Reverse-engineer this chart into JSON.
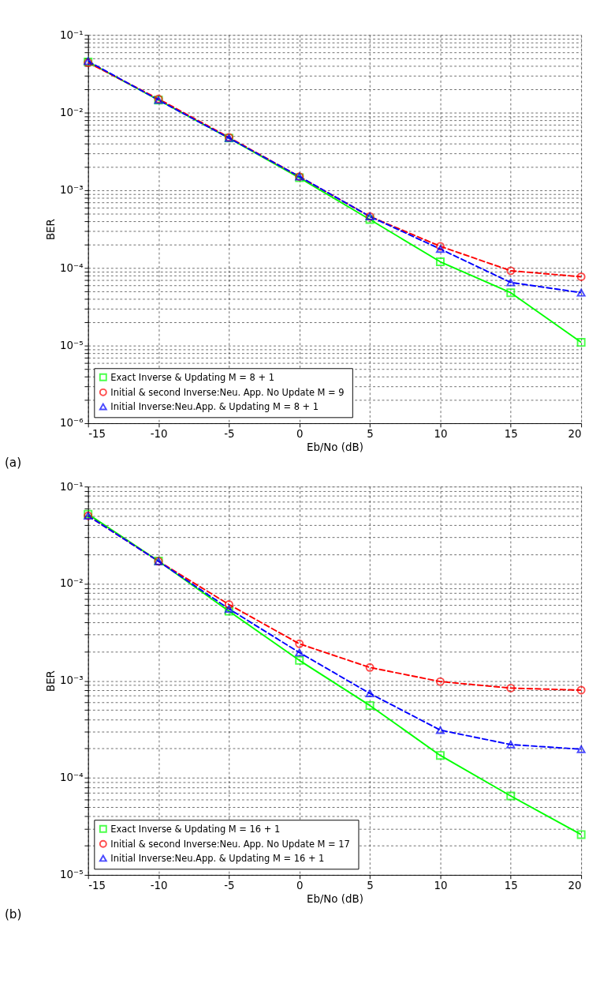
{
  "chart_data": [
    {
      "type": "line",
      "xlabel": "Eb/No (dB)",
      "ylabel": "BER",
      "annotations": [
        "(a)"
      ],
      "log": "y",
      "grid": true,
      "legend": "bottom left",
      "x": [
        -15,
        -10,
        -5,
        0,
        5,
        10,
        15,
        20
      ],
      "xlim": [
        -15,
        20
      ],
      "xticks": [
        -15,
        -10,
        -5,
        0,
        5,
        10,
        15,
        20
      ],
      "ylim": [
        1e-06,
        0.1
      ],
      "yticks": [
        {
          "value": 1e-06,
          "label": "10⁻⁶"
        },
        {
          "value": 2e-06,
          "label": null
        },
        {
          "value": 3e-06,
          "label": null
        },
        {
          "value": 4e-06,
          "label": null
        },
        {
          "value": 5e-06,
          "label": null
        },
        {
          "value": 6e-06,
          "label": null
        },
        {
          "value": 7e-06,
          "label": null
        },
        {
          "value": 8e-06,
          "label": null
        },
        {
          "value": 9e-06,
          "label": null
        },
        {
          "value": 1e-05,
          "label": "10⁻⁵"
        },
        {
          "value": 2e-05,
          "label": null
        },
        {
          "value": 3e-05,
          "label": null
        },
        {
          "value": 4e-05,
          "label": null
        },
        {
          "value": 5e-05,
          "label": null
        },
        {
          "value": 6e-05,
          "label": null
        },
        {
          "value": 7e-05,
          "label": null
        },
        {
          "value": 8e-05,
          "label": null
        },
        {
          "value": 9e-05,
          "label": null
        },
        {
          "value": 0.0001,
          "label": "10⁻⁴"
        },
        {
          "value": 0.0002,
          "label": null
        },
        {
          "value": 0.0003,
          "label": null
        },
        {
          "value": 0.0004,
          "label": null
        },
        {
          "value": 0.0005,
          "label": null
        },
        {
          "value": 0.0006,
          "label": null
        },
        {
          "value": 0.0007,
          "label": null
        },
        {
          "value": 0.0008,
          "label": null
        },
        {
          "value": 0.0009,
          "label": null
        },
        {
          "value": 0.001,
          "label": "10⁻³"
        },
        {
          "value": 0.002,
          "label": null
        },
        {
          "value": 0.003,
          "label": null
        },
        {
          "value": 0.004,
          "label": null
        },
        {
          "value": 0.005,
          "label": null
        },
        {
          "value": 0.006,
          "label": null
        },
        {
          "value": 0.007,
          "label": null
        },
        {
          "value": 0.008,
          "label": null
        },
        {
          "value": 0.009,
          "label": null
        },
        {
          "value": 0.01,
          "label": "10⁻²"
        },
        {
          "value": 0.02,
          "label": null
        },
        {
          "value": 0.03,
          "label": null
        },
        {
          "value": 0.04,
          "label": null
        },
        {
          "value": 0.05,
          "label": null
        },
        {
          "value": 0.06,
          "label": null
        },
        {
          "value": 0.07,
          "label": null
        },
        {
          "value": 0.08,
          "label": null
        },
        {
          "value": 0.09,
          "label": null
        },
        {
          "value": 0.1,
          "label": "10⁻¹"
        }
      ],
      "series": [
        {
          "name": "Exact Inverse & Updating M = 8 + 1",
          "color": "#00ff00",
          "marker": "square",
          "line_style": "solid",
          "values": [
            0.045,
            0.0145,
            0.0047,
            0.00145,
            0.00042,
            0.00012,
            4.8e-05,
            1.1e-05
          ]
        },
        {
          "name": "Initial & second Inverse:Neu. App. No Update  M = 9",
          "color": "#ff0000",
          "marker": "circle",
          "line_style": "dashed",
          "values": [
            0.044,
            0.015,
            0.0048,
            0.0015,
            0.00046,
            0.00019,
            9.2e-05,
            7.7e-05
          ]
        },
        {
          "name": "Initial Inverse:Neu.App. & Updating M = 8 + 1",
          "color": "#0000ff",
          "marker": "triangle",
          "line_style": "dashed",
          "values": [
            0.046,
            0.0145,
            0.0047,
            0.0015,
            0.00046,
            0.000175,
            6.5e-05,
            4.8e-05
          ]
        }
      ]
    },
    {
      "type": "line",
      "xlabel": "Eb/No (dB)",
      "ylabel": "BER",
      "annotations": [
        "(b)"
      ],
      "log": "y",
      "grid": true,
      "legend": "bottom left",
      "x": [
        -15,
        -10,
        -5,
        0,
        5,
        10,
        15,
        20
      ],
      "xlim": [
        -15,
        20
      ],
      "xticks": [
        -15,
        -10,
        -5,
        0,
        5,
        10,
        15,
        20
      ],
      "ylim": [
        1e-05,
        0.1
      ],
      "yticks": [
        {
          "value": 1e-05,
          "label": "10⁻⁵"
        },
        {
          "value": 2e-05,
          "label": null
        },
        {
          "value": 3e-05,
          "label": null
        },
        {
          "value": 4e-05,
          "label": null
        },
        {
          "value": 5e-05,
          "label": null
        },
        {
          "value": 6e-05,
          "label": null
        },
        {
          "value": 7e-05,
          "label": null
        },
        {
          "value": 8e-05,
          "label": null
        },
        {
          "value": 9e-05,
          "label": null
        },
        {
          "value": 0.0001,
          "label": "10⁻⁴"
        },
        {
          "value": 0.0002,
          "label": null
        },
        {
          "value": 0.0003,
          "label": null
        },
        {
          "value": 0.0004,
          "label": null
        },
        {
          "value": 0.0005,
          "label": null
        },
        {
          "value": 0.0006,
          "label": null
        },
        {
          "value": 0.0007,
          "label": null
        },
        {
          "value": 0.0008,
          "label": null
        },
        {
          "value": 0.0009,
          "label": null
        },
        {
          "value": 0.001,
          "label": "10⁻³"
        },
        {
          "value": 0.002,
          "label": null
        },
        {
          "value": 0.003,
          "label": null
        },
        {
          "value": 0.004,
          "label": null
        },
        {
          "value": 0.005,
          "label": null
        },
        {
          "value": 0.006,
          "label": null
        },
        {
          "value": 0.007,
          "label": null
        },
        {
          "value": 0.008,
          "label": null
        },
        {
          "value": 0.009,
          "label": null
        },
        {
          "value": 0.01,
          "label": "10⁻²"
        },
        {
          "value": 0.02,
          "label": null
        },
        {
          "value": 0.03,
          "label": null
        },
        {
          "value": 0.04,
          "label": null
        },
        {
          "value": 0.05,
          "label": null
        },
        {
          "value": 0.06,
          "label": null
        },
        {
          "value": 0.07,
          "label": null
        },
        {
          "value": 0.08,
          "label": null
        },
        {
          "value": 0.09,
          "label": null
        },
        {
          "value": 0.1,
          "label": "10⁻¹"
        }
      ],
      "series": [
        {
          "name": "Exact Inverse & Updating M = 16 + 1",
          "color": "#00ff00",
          "marker": "square",
          "line_style": "solid",
          "values": [
            0.052,
            0.0171,
            0.0052,
            0.00162,
            0.000556,
            0.00017,
            6.5e-05,
            2.6e-05
          ]
        },
        {
          "name": "Initial & second Inverse:Neu. App. No Update  M = 17",
          "color": "#ff0000",
          "marker": "circle",
          "line_style": "dashed",
          "values": [
            0.05,
            0.017,
            0.0061,
            0.0024,
            0.00137,
            0.00098,
            0.00084,
            0.0008
          ]
        },
        {
          "name": "Initial Inverse:Neu.App. & Updating M = 16 + 1",
          "color": "#0000ff",
          "marker": "triangle",
          "line_style": "dashed",
          "values": [
            0.05,
            0.017,
            0.0055,
            0.00195,
            0.00074,
            0.00031,
            0.00022,
            0.000197
          ]
        }
      ]
    }
  ]
}
